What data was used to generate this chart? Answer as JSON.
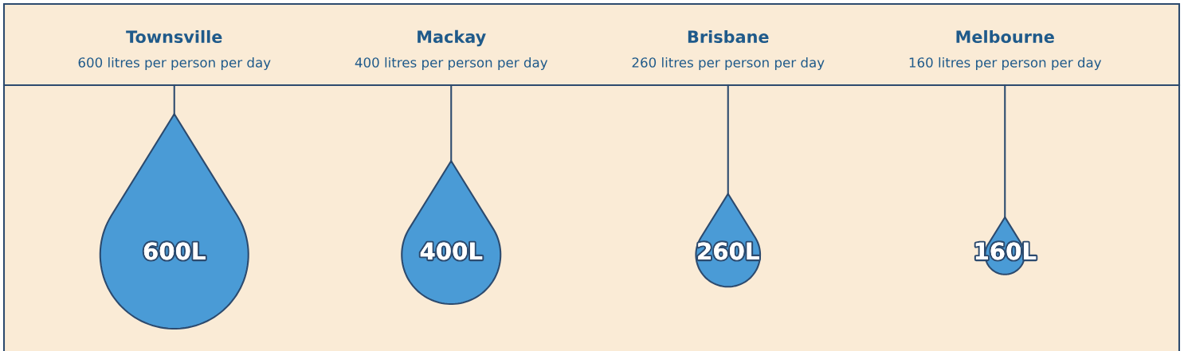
{
  "chart_data": {
    "type": "other",
    "categories": [
      "Townsville",
      "Mackay",
      "Brisbane",
      "Melbourne"
    ],
    "values": [
      600,
      400,
      260,
      160
    ],
    "value_labels": [
      "600L",
      "400L",
      "260L",
      "160L"
    ],
    "colors": [
      "#4a9bd6",
      "#4a9bd6",
      "#4a9bd6",
      "#4a9bd6"
    ],
    "annotations": [
      "600 litres per person per day",
      "400 litres per person per day",
      "260 litres per person per day",
      "160 litres per person per day"
    ]
  }
}
